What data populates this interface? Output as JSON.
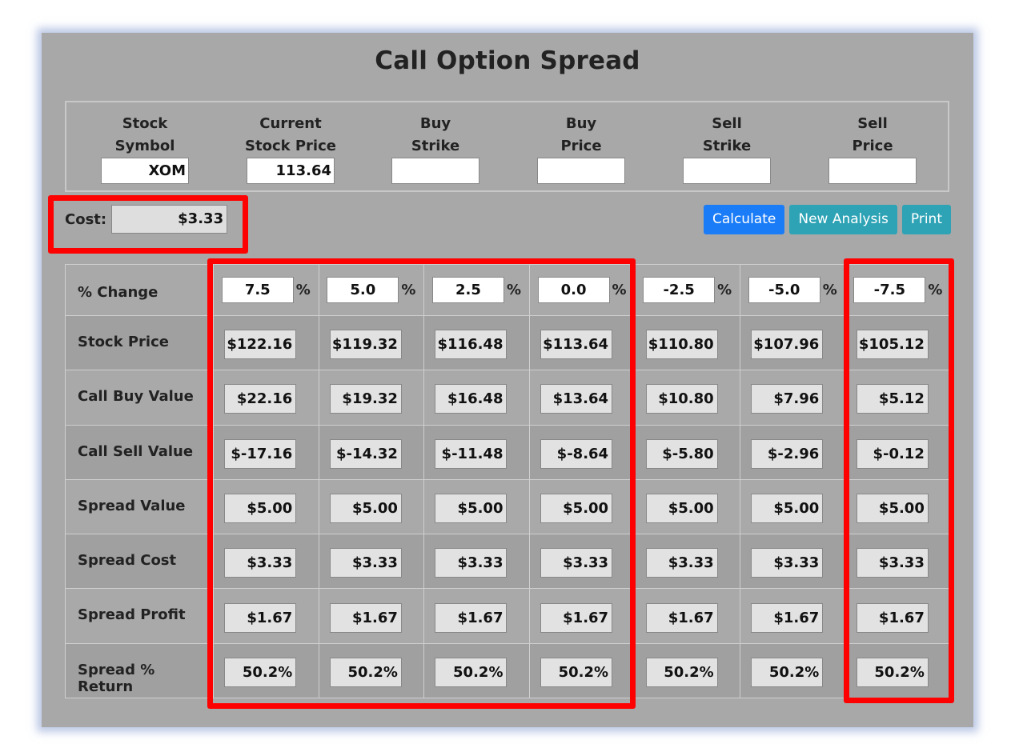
{
  "title": "Call Option Spread",
  "inputs": [
    {
      "label_line1": "Stock",
      "label_line2": "Symbol",
      "value": "XOM"
    },
    {
      "label_line1": "Current",
      "label_line2": "Stock Price",
      "value": "113.64"
    },
    {
      "label_line1": "Buy",
      "label_line2": "Strike",
      "value": ""
    },
    {
      "label_line1": "Buy",
      "label_line2": "Price",
      "value": ""
    },
    {
      "label_line1": "Sell",
      "label_line2": "Strike",
      "value": ""
    },
    {
      "label_line1": "Sell",
      "label_line2": "Price",
      "value": ""
    }
  ],
  "cost": {
    "label": "Cost:",
    "value": "$3.33"
  },
  "buttons": {
    "calculate": "Calculate",
    "new_analysis": "New Analysis",
    "print": "Print"
  },
  "colors": {
    "primary_button": "#1a7cf7",
    "info_button": "#2ea3b5",
    "highlight": "#ff0000",
    "panel": "#a8a8a8"
  },
  "pct_row": {
    "label": "% Change",
    "percent_sign": "%",
    "values": [
      "7.5",
      "5.0",
      "2.5",
      "0.0",
      "-2.5",
      "-5.0",
      "-7.5"
    ]
  },
  "rows": [
    {
      "label": "Stock Price",
      "values": [
        "$122.16",
        "$119.32",
        "$116.48",
        "$113.64",
        "$110.80",
        "$107.96",
        "$105.12"
      ]
    },
    {
      "label": "Call Buy Value",
      "values": [
        "$22.16",
        "$19.32",
        "$16.48",
        "$13.64",
        "$10.80",
        "$7.96",
        "$5.12"
      ]
    },
    {
      "label": "Call Sell Value",
      "values": [
        "$-17.16",
        "$-14.32",
        "$-11.48",
        "$-8.64",
        "$-5.80",
        "$-2.96",
        "$-0.12"
      ]
    },
    {
      "label": "Spread Value",
      "values": [
        "$5.00",
        "$5.00",
        "$5.00",
        "$5.00",
        "$5.00",
        "$5.00",
        "$5.00"
      ]
    },
    {
      "label": "Spread Cost",
      "values": [
        "$3.33",
        "$3.33",
        "$3.33",
        "$3.33",
        "$3.33",
        "$3.33",
        "$3.33"
      ]
    },
    {
      "label": "Spread Profit",
      "values": [
        "$1.67",
        "$1.67",
        "$1.67",
        "$1.67",
        "$1.67",
        "$1.67",
        "$1.67"
      ]
    },
    {
      "label": "Spread % Return",
      "values": [
        "50.2%",
        "50.2%",
        "50.2%",
        "50.2%",
        "50.2%",
        "50.2%",
        "50.2%"
      ]
    }
  ]
}
